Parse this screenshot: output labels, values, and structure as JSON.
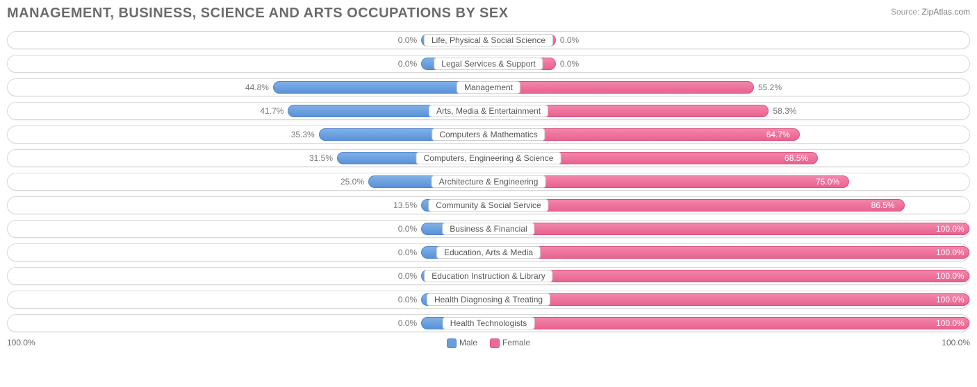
{
  "title": "Management, Business, Science and Arts Occupations by Sex",
  "source_label": "Source:",
  "source_site": "ZipAtlas.com",
  "axis_left": "100.0%",
  "axis_right": "100.0%",
  "legend": {
    "male": "Male",
    "female": "Female"
  },
  "chart": {
    "type": "diverging-bar",
    "male_color": "#6a9edb",
    "female_color": "#ea6a95",
    "background_color": "#ffffff",
    "border_color": "#d8d8d8",
    "text_color": "#777777",
    "label_fontsize": 12,
    "title_fontsize": 20,
    "min_bar_pct": 14,
    "rows": [
      {
        "category": "Life, Physical & Social Science",
        "male": 0.0,
        "female": 0.0
      },
      {
        "category": "Legal Services & Support",
        "male": 0.0,
        "female": 0.0
      },
      {
        "category": "Management",
        "male": 44.8,
        "female": 55.2
      },
      {
        "category": "Arts, Media & Entertainment",
        "male": 41.7,
        "female": 58.3
      },
      {
        "category": "Computers & Mathematics",
        "male": 35.3,
        "female": 64.7
      },
      {
        "category": "Computers, Engineering & Science",
        "male": 31.5,
        "female": 68.5
      },
      {
        "category": "Architecture & Engineering",
        "male": 25.0,
        "female": 75.0
      },
      {
        "category": "Community & Social Service",
        "male": 13.5,
        "female": 86.5
      },
      {
        "category": "Business & Financial",
        "male": 0.0,
        "female": 100.0
      },
      {
        "category": "Education, Arts & Media",
        "male": 0.0,
        "female": 100.0
      },
      {
        "category": "Education Instruction & Library",
        "male": 0.0,
        "female": 100.0
      },
      {
        "category": "Health Diagnosing & Treating",
        "male": 0.0,
        "female": 100.0
      },
      {
        "category": "Health Technologists",
        "male": 0.0,
        "female": 100.0
      }
    ]
  }
}
